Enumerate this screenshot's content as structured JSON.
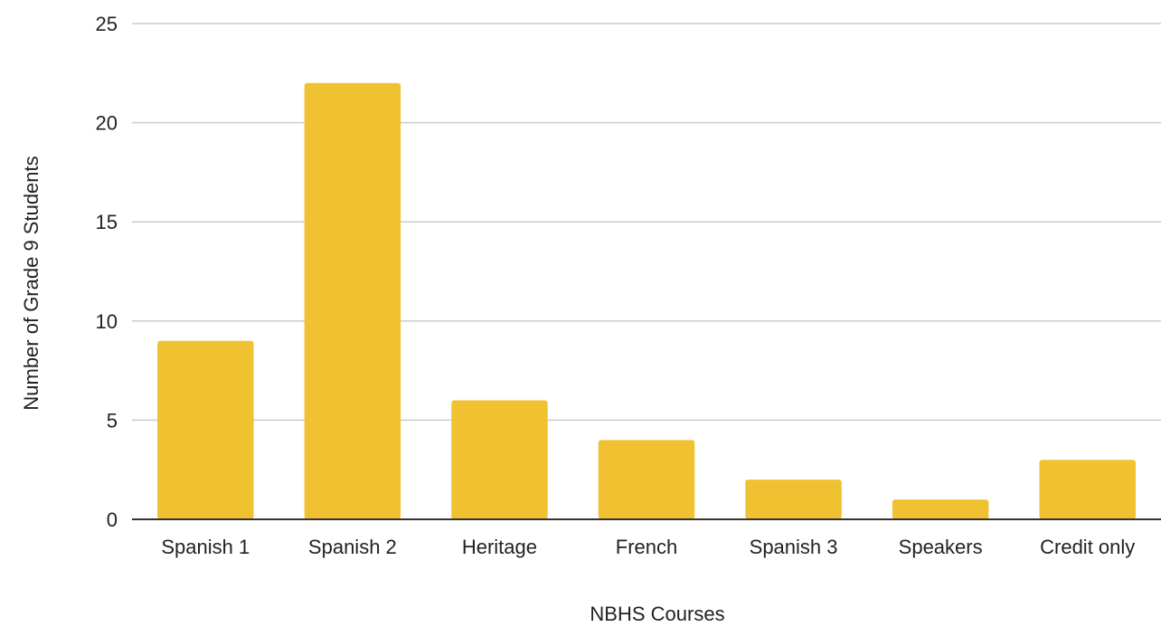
{
  "chart_data": {
    "type": "bar",
    "title": "",
    "xlabel": "NBHS Courses",
    "ylabel": "Number of Grade 9 Students",
    "categories": [
      "Spanish 1",
      "Spanish 2",
      "Heritage",
      "French",
      "Spanish 3",
      "Speakers",
      "Credit only"
    ],
    "values": [
      9,
      22,
      6,
      4,
      2,
      1,
      3
    ],
    "ylim": [
      0,
      25
    ],
    "yticks": [
      "0",
      "5",
      "10",
      "15",
      "20",
      "25"
    ],
    "grid": true,
    "legend": "none",
    "colors": {
      "bar": "#F0C232",
      "grid": "#CCCCCC",
      "axis": "#333333",
      "text": "#222222"
    }
  }
}
